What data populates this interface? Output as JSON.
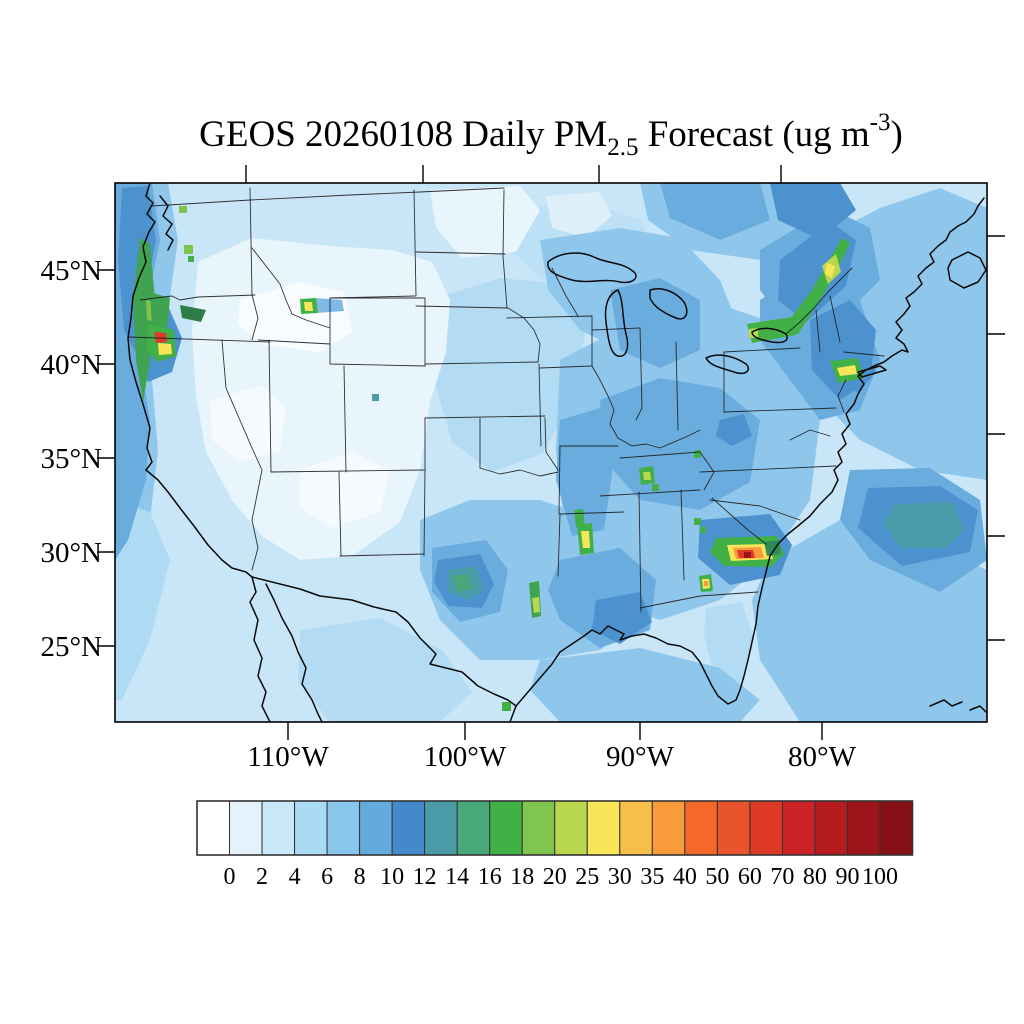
{
  "title": {
    "prefix": "GEOS 20260108 Daily PM",
    "subscript": "2.5",
    "middle": " Forecast (ug m",
    "superscript": "-3",
    "suffix": ")"
  },
  "map": {
    "lat_ticks": [
      "45°N",
      "40°N",
      "35°N",
      "30°N",
      "25°N"
    ],
    "lon_ticks": [
      "110°W",
      "100°W",
      "90°W",
      "80°W"
    ]
  },
  "colorbar": {
    "labels": [
      "0",
      "2",
      "4",
      "6",
      "8",
      "10",
      "12",
      "14",
      "16",
      "18",
      "20",
      "25",
      "30",
      "35",
      "40",
      "50",
      "60",
      "70",
      "80",
      "90",
      "100"
    ],
    "colors": [
      "#FFFFFF",
      "#E3F2FB",
      "#C9E8F8",
      "#AADAF4",
      "#88C7EB",
      "#65AADD",
      "#4389CB",
      "#4B9CA9",
      "#49A878",
      "#40B047",
      "#80C54D",
      "#B8D64E",
      "#F8E658",
      "#F7BE49",
      "#F89B3C",
      "#F4682C",
      "#E8542B",
      "#DC3A27",
      "#CD2128",
      "#B51B1F",
      "#9C151A",
      "#871016"
    ]
  },
  "chart_data": {
    "type": "heatmap",
    "title": "GEOS 20260108 Daily PM2.5 Forecast (ug m-3)",
    "units": "ug m-3",
    "region": "Continental United States and adjacent waters",
    "x_tick_labels": [
      "110°W",
      "100°W",
      "90°W",
      "80°W"
    ],
    "y_tick_labels": [
      "45°N",
      "40°N",
      "35°N",
      "30°N",
      "25°N"
    ],
    "colorbar_levels": [
      0,
      2,
      4,
      6,
      8,
      10,
      12,
      14,
      16,
      18,
      20,
      25,
      30,
      35,
      40,
      50,
      60,
      70,
      80,
      90,
      100
    ],
    "colorbar_colors": [
      "#FFFFFF",
      "#E3F2FB",
      "#C9E8F8",
      "#AADAF4",
      "#88C7EB",
      "#65AADD",
      "#4389CB",
      "#4B9CA9",
      "#49A878",
      "#40B047",
      "#80C54D",
      "#B8D64E",
      "#F8E658",
      "#F7BE49",
      "#F89B3C",
      "#F4682C",
      "#E8542B",
      "#DC3A27",
      "#CD2128",
      "#B51B1F",
      "#9C151A",
      "#871016"
    ],
    "legend_position": "bottom",
    "grid": false,
    "general_pattern": {
      "interior_west_basin": "0-2 (near white)",
      "central_plains": "2-6 (light blue)",
      "eastern_us_and_gulf": "6-12 (medium blue)",
      "pacific_and_atlantic_offshore": "6-14 (medium to deep blue, teal patch ~12-14 in west Atlantic)"
    },
    "hotspots": [
      {
        "location": "central Georgia plume",
        "peak_range": "80 to >100",
        "colors": "green-yellow-orange-red core with dark red center"
      },
      {
        "location": "Oregon/California border coast",
        "peak_range": "60-70",
        "colors": "red core with yellow and green ring"
      },
      {
        "location": "St. Lawrence valley (Quebec)",
        "peak_range": "25-30",
        "colors": "green band with yellow core"
      },
      {
        "location": "New York City metro",
        "peak_range": "25-30",
        "colors": "yellow streak in green patch"
      },
      {
        "location": "western Montana",
        "peak_range": "25-30",
        "colors": "yellow dot with green ring and blue plume east"
      },
      {
        "location": "lower Mississippi / Arkansas streak",
        "peak_range": "25-30",
        "colors": "yellow core in green"
      },
      {
        "location": "south Georgia / Florida border spot",
        "peak_range": "30-40",
        "colors": "yellow-orange dot"
      },
      {
        "location": "east Texas streak",
        "peak_range": "18-25",
        "colors": "green with yellow-green core"
      },
      {
        "location": "Kentucky/Tennessee spots",
        "peak_range": "18-25",
        "colors": "small green-yellow dots"
      },
      {
        "location": "Oregon coastal strip",
        "peak_range": "14-20",
        "colors": "narrow green band along coastline"
      }
    ]
  }
}
